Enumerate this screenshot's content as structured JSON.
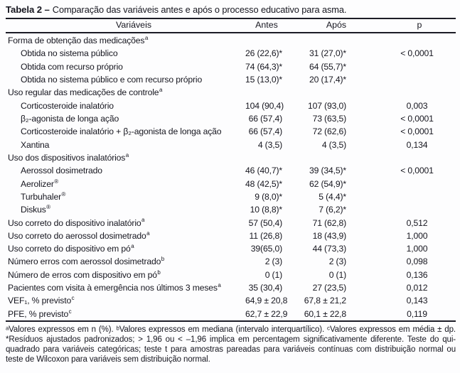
{
  "title": {
    "bold": "Tabela 2 –",
    "text": "Comparação das variáveis antes e após o processo educativo para asma."
  },
  "table": {
    "headers": {
      "variaveis": "Variáveis",
      "antes": "Antes",
      "apos": "Após",
      "p": "p"
    },
    "rows": [
      {
        "label": "Forma de obtenção das medicações",
        "sup": "a",
        "indent": false,
        "antes": "",
        "apos": "",
        "p": ""
      },
      {
        "label": "Obtida no sistema público",
        "sup": "",
        "indent": true,
        "antes": "26 (22,6)*",
        "apos": "31 (27,0)*",
        "p": "< 0,0001"
      },
      {
        "label": "Obtida com recurso próprio",
        "sup": "",
        "indent": true,
        "antes": "74 (64,3)*",
        "apos": "64 (55,7)*",
        "p": ""
      },
      {
        "label": "Obtida no sistema público e com recurso próprio",
        "sup": "",
        "indent": true,
        "antes": "15 (13,0)*",
        "apos": "20 (17,4)*",
        "p": ""
      },
      {
        "label": "Uso regular das medicações de controle",
        "sup": "a",
        "indent": false,
        "antes": "",
        "apos": "",
        "p": ""
      },
      {
        "label": "Corticosteroide inalatório",
        "sup": "",
        "indent": true,
        "antes": "104 (90,4)",
        "apos": "107 (93,0)",
        "p": "0,003"
      },
      {
        "label": "β₂-agonista de longa ação",
        "sup": "",
        "indent": true,
        "antes": "66 (57,4)",
        "apos": "73 (63,5)",
        "p": "< 0,0001"
      },
      {
        "label": "Corticosteroide inalatório + β₂-agonista de longa ação",
        "sup": "",
        "indent": true,
        "antes": "66 (57,4)",
        "apos": "72 (62,6)",
        "p": "< 0,0001"
      },
      {
        "label": "Xantina",
        "sup": "",
        "indent": true,
        "antes": "4 (3,5)",
        "apos": "4 (3,5)",
        "p": "0,134"
      },
      {
        "label": "Uso dos dispositivos inalatórios",
        "sup": "a",
        "indent": false,
        "antes": "",
        "apos": "",
        "p": ""
      },
      {
        "label": "Aerossol dosimetrado",
        "sup": "",
        "indent": true,
        "antes": "46 (40,7)*",
        "apos": "39 (34,5)*",
        "p": "< 0,0001"
      },
      {
        "label": "Aerolizer",
        "sup": "®",
        "indent": true,
        "antes": "48 (42,5)*",
        "apos": "62 (54,9)*",
        "p": ""
      },
      {
        "label": "Turbuhaler",
        "sup": "®",
        "indent": true,
        "antes": "9 (8,0)*",
        "apos": "5 (4,4)*",
        "p": ""
      },
      {
        "label": "Diskus",
        "sup": "®",
        "indent": true,
        "antes": "10 (8,8)*",
        "apos": "7 (6,2)*",
        "p": ""
      },
      {
        "label": "Uso correto do dispositivo inalatório",
        "sup": "a",
        "indent": false,
        "antes": "57 (50,4)",
        "apos": "71 (62,8)",
        "p": "0,512"
      },
      {
        "label": "Uso correto do aerossol dosimetrado",
        "sup": "a",
        "indent": false,
        "antes": "11 (26,8)",
        "apos": "18 (43,9)",
        "p": "1,000"
      },
      {
        "label": "Uso correto do dispositivo em pó",
        "sup": "a",
        "indent": false,
        "antes": "39(65,0)",
        "apos": "44 (73,3)",
        "p": "1,000"
      },
      {
        "label": "Número erros com aerossol dosimetrado",
        "sup": "b",
        "indent": false,
        "antes": "2 (3)",
        "apos": "2 (3)",
        "p": "0,098"
      },
      {
        "label": "Número de erros com dispositivo em pó",
        "sup": "b",
        "indent": false,
        "antes": "0 (1)",
        "apos": "0 (1)",
        "p": "0,136"
      },
      {
        "label": "Pacientes com visita à emergência nos últimos 3 meses",
        "sup": "a",
        "indent": false,
        "antes": "35 (30,4)",
        "apos": "27 (23,5)",
        "p": "0,012"
      },
      {
        "label": "VEF₁, % previsto",
        "sup": "c",
        "indent": false,
        "antes": "64,9 ± 20,8",
        "apos": "67,8 ± 21,2",
        "p": "0,143"
      },
      {
        "label": "PFE, % previsto",
        "sup": "c",
        "indent": false,
        "antes": "62,7 ± 22,9",
        "apos": "60,1 ± 22,8",
        "p": "0,119"
      }
    ]
  },
  "footnote": "ᵃValores expressos em n (%). ᵇValores expressos em mediana (intervalo interquartílico). ᶜValores expressos em média ± dp. *Resíduos ajustados padronizados; > 1,96 ou < –1,96 implica em percentagem significativamente diferente. Teste do qui-quadrado para variáveis categóricas; teste t para amostras pareadas para variáveis contínuas com distribuição normal ou teste de Wilcoxon para variáveis sem distribuição normal.",
  "colors": {
    "text": "#16161f",
    "rule": "#1c1c26",
    "background": "#fdfdfe"
  }
}
